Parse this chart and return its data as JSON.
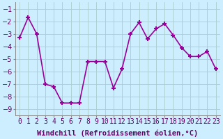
{
  "x": [
    0,
    1,
    2,
    3,
    4,
    5,
    6,
    7,
    8,
    9,
    10,
    11,
    12,
    13,
    14,
    15,
    16,
    17,
    18,
    19,
    20,
    21,
    22,
    23
  ],
  "y": [
    -3.3,
    -1.7,
    -3.0,
    -7.0,
    -7.2,
    -8.5,
    -8.5,
    -8.5,
    -5.2,
    -5.2,
    -5.2,
    -7.3,
    -5.8,
    -3.0,
    -2.1,
    -3.4,
    -2.6,
    -2.2,
    -3.1,
    -4.1,
    -4.8,
    -4.8,
    -4.4,
    -5.8
  ],
  "line_color": "#990099",
  "marker": "+",
  "marker_size": 5,
  "marker_lw": 1.5,
  "xlim": [
    -0.5,
    23.5
  ],
  "ylim": [
    -9.5,
    -0.5
  ],
  "yticks": [
    -9,
    -8,
    -7,
    -6,
    -5,
    -4,
    -3,
    -2,
    -1
  ],
  "xtick_labels": [
    "0",
    "1",
    "2",
    "3",
    "4",
    "5",
    "6",
    "7",
    "8",
    "9",
    "10",
    "11",
    "12",
    "13",
    "14",
    "15",
    "16",
    "17",
    "18",
    "19",
    "20",
    "21",
    "22",
    "23"
  ],
  "xlabel": "Windchill (Refroidissement éolien,°C)",
  "xlabel_fontsize": 7.5,
  "background_color": "#cceeff",
  "grid_color": "#aacccc",
  "tick_fontsize": 7,
  "linewidth": 1.2
}
